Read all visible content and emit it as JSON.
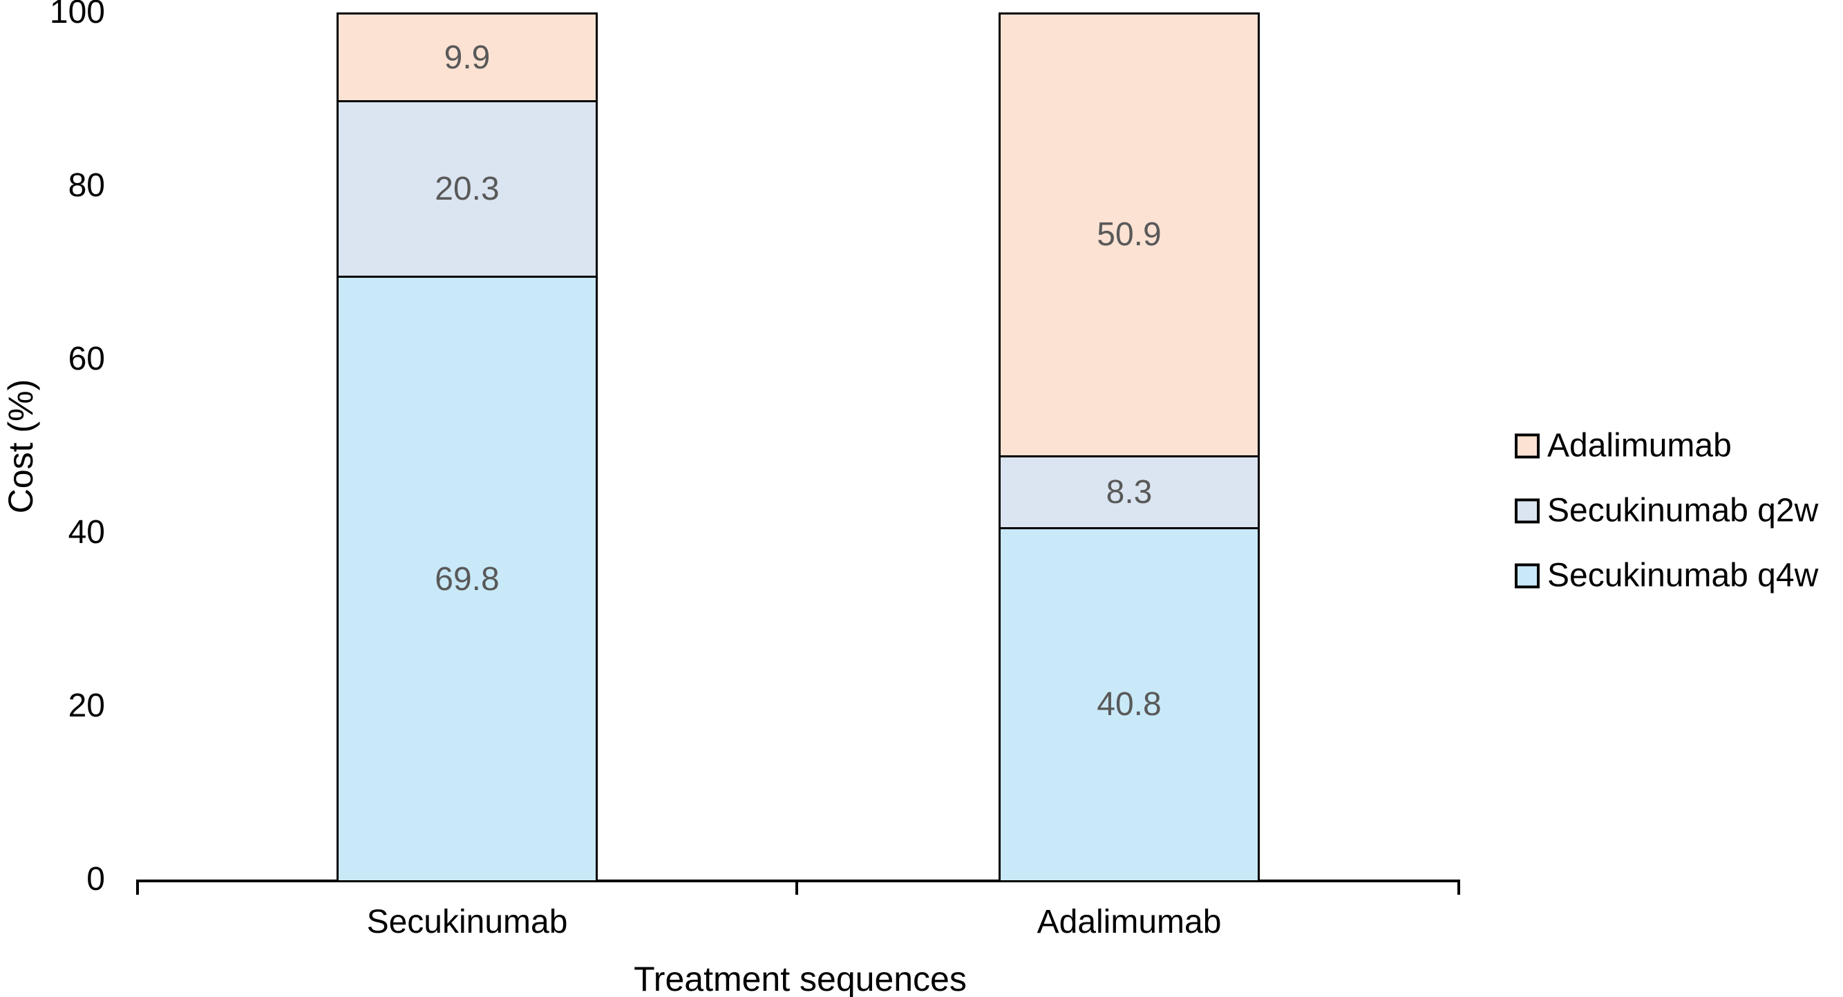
{
  "chart_data": {
    "type": "bar",
    "stacked": true,
    "title": "",
    "xlabel": "Treatment sequences",
    "ylabel": "Cost (%)",
    "ylim": [
      0,
      100
    ],
    "yticks": [
      0,
      20,
      40,
      60,
      80,
      100
    ],
    "grid": false,
    "categories": [
      "Secukinumab",
      "Adalimumab"
    ],
    "series": [
      {
        "name": "Secukinumab q4w",
        "color": "#C9E9F8",
        "values": [
          69.8,
          40.8
        ]
      },
      {
        "name": "Secukinumab q2w",
        "color": "#DBE5F1",
        "values": [
          20.3,
          8.3
        ]
      },
      {
        "name": "Adalimumab",
        "color": "#FBE2D3",
        "values": [
          9.9,
          50.9
        ]
      }
    ],
    "data_labels": {
      "color": "#595959",
      "decimals": 1
    },
    "legend": {
      "position": "right",
      "order": [
        "Adalimumab",
        "Secukinumab q2w",
        "Secukinumab q4w"
      ]
    },
    "axis_color": "#000000"
  }
}
